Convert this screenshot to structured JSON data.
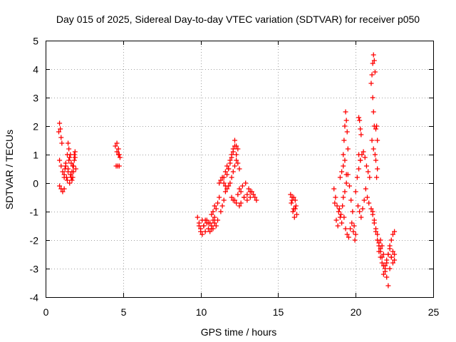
{
  "chart_data": {
    "type": "scatter",
    "title": "Day 015 of 2025, Sidereal Day-to-day VTEC variation (SDTVAR) for receiver p050",
    "xlabel": "GPS time / hours",
    "ylabel": "SDTVAR / TECUs",
    "xlim": [
      0,
      25
    ],
    "ylim": [
      -4,
      5
    ],
    "xticks": [
      0,
      5,
      10,
      15,
      20,
      25
    ],
    "yticks": [
      -4,
      -3,
      -2,
      -1,
      0,
      1,
      2,
      3,
      4,
      5
    ],
    "grid": true,
    "marker": "+",
    "color": "#ff0000",
    "series": [
      {
        "name": "SDTVAR",
        "x": [
          0.85,
          0.9,
          0.95,
          1.0,
          1.05,
          0.9,
          1.0,
          1.1,
          1.2,
          1.3,
          1.4,
          1.45,
          1.5,
          1.5,
          1.45,
          1.2,
          1.25,
          1.3,
          1.35,
          1.4,
          1.45,
          1.55,
          1.6,
          1.65,
          1.7,
          1.75,
          1.8,
          1.85,
          1.9,
          1.95,
          1.6,
          1.7,
          1.8,
          1.9,
          1.55,
          1.65,
          1.75,
          1.85,
          0.9,
          1.0,
          1.1,
          1.2,
          4.5,
          4.6,
          4.7,
          4.75,
          4.8,
          4.55,
          4.65,
          4.75,
          4.6,
          4.7,
          9.8,
          9.9,
          10.0,
          10.1,
          10.2,
          10.3,
          10.4,
          10.5,
          10.6,
          10.7,
          10.8,
          10.9,
          11.0,
          11.1,
          9.9,
          10.1,
          10.3,
          10.5,
          10.7,
          10.9,
          10.0,
          10.2,
          10.4,
          10.6,
          10.8,
          10.7,
          10.8,
          10.9,
          11.0,
          11.1,
          11.2,
          11.2,
          11.3,
          11.4,
          11.5,
          11.6,
          11.7,
          11.8,
          11.9,
          12.0,
          12.1,
          12.2,
          12.3,
          11.5,
          11.6,
          11.7,
          11.8,
          11.9,
          12.0,
          12.1,
          12.2,
          12.3,
          12.4,
          11.3,
          11.4,
          11.5,
          11.6,
          11.7,
          11.8,
          11.9,
          12.0,
          12.1,
          12.2,
          12.3,
          12.4,
          12.5,
          12.0,
          12.2,
          12.4,
          12.6,
          12.8,
          13.0,
          13.2,
          13.4,
          13.5,
          13.6,
          12.5,
          12.7,
          12.9,
          13.1,
          13.3,
          12.6,
          12.8,
          13.0,
          13.2,
          12.1,
          12.3,
          12.5,
          15.8,
          15.9,
          16.0,
          16.1,
          16.2,
          15.85,
          15.95,
          16.05,
          16.15,
          15.9,
          16.0,
          16.1,
          18.6,
          18.7,
          18.8,
          18.9,
          19.0,
          19.1,
          19.2,
          19.3,
          19.4,
          19.5,
          19.6,
          19.7,
          19.8,
          19.9,
          20.0,
          18.65,
          18.75,
          18.85,
          18.95,
          19.05,
          19.15,
          19.25,
          19.35,
          19.45,
          19.55,
          19.65,
          19.75,
          19.85,
          19.95,
          19.2,
          19.25,
          19.3,
          19.35,
          19.4,
          19.45,
          19.5,
          19.3,
          19.4,
          19.2,
          19.1,
          19.0,
          20.0,
          20.1,
          20.2,
          20.3,
          20.4,
          20.5,
          20.6,
          20.7,
          20.8,
          20.9,
          20.15,
          20.25,
          20.35,
          20.45,
          20.55,
          20.65,
          20.75,
          20.85,
          20.2,
          20.25,
          20.3,
          20.35,
          20.2,
          20.3,
          21.0,
          21.05,
          21.1,
          21.15,
          21.2,
          21.25,
          21.1,
          21.15,
          21.2,
          21.05,
          21.15,
          21.25,
          21.3,
          21.35,
          21.4,
          21.3,
          21.4,
          21.35,
          21.0,
          21.1,
          21.2,
          21.3,
          21.4,
          21.5,
          21.6,
          21.7,
          21.8,
          21.9,
          22.0,
          22.1,
          22.2,
          22.3,
          22.4,
          22.5,
          21.5,
          21.6,
          21.7,
          21.8,
          21.9,
          22.0,
          22.1,
          22.2,
          22.3,
          22.4,
          22.5,
          21.6,
          21.7,
          21.8,
          21.9,
          22.0,
          22.1,
          22.2,
          22.3,
          22.4,
          22.5,
          21.1,
          21.2,
          21.3,
          21.4,
          21.5,
          21.6
        ],
        "y": [
          1.8,
          2.1,
          1.9,
          1.6,
          1.4,
          0.8,
          0.6,
          0.4,
          0.2,
          0.6,
          1.0,
          1.4,
          1.2,
          0.8,
          0.4,
          0.3,
          0.5,
          0.7,
          0.2,
          0.1,
          0.5,
          0.9,
          1.0,
          0.7,
          0.4,
          0.2,
          0.6,
          0.8,
          1.1,
          0.5,
          0.3,
          0.1,
          0.4,
          0.9,
          0.0,
          0.2,
          0.6,
          1.0,
          -0.1,
          -0.2,
          -0.3,
          -0.2,
          1.3,
          1.4,
          1.2,
          1.0,
          0.9,
          0.6,
          0.6,
          0.6,
          1.1,
          1.0,
          -1.2,
          -1.4,
          -1.6,
          -1.8,
          -1.5,
          -1.3,
          -1.4,
          -1.6,
          -1.7,
          -1.5,
          -1.3,
          -1.4,
          -1.5,
          -1.3,
          -1.5,
          -1.3,
          -1.7,
          -1.4,
          -1.6,
          -1.2,
          -1.7,
          -1.5,
          -1.3,
          -1.4,
          -1.6,
          -1.1,
          -1.0,
          -0.8,
          -0.9,
          -0.7,
          -0.5,
          0.0,
          0.1,
          0.2,
          0.0,
          -0.1,
          0.3,
          0.5,
          0.7,
          0.9,
          1.1,
          1.3,
          1.0,
          0.2,
          0.4,
          0.6,
          0.5,
          0.8,
          1.0,
          1.2,
          1.5,
          1.3,
          1.2,
          -1.0,
          -0.8,
          -0.6,
          -0.3,
          -0.2,
          -0.1,
          0.0,
          0.2,
          0.4,
          0.6,
          0.8,
          0.7,
          0.5,
          -0.5,
          -0.6,
          -0.4,
          -0.3,
          -0.5,
          -0.6,
          -0.3,
          -0.4,
          -0.5,
          -0.6,
          -0.2,
          -0.1,
          0.0,
          -0.2,
          -0.3,
          -0.7,
          -0.5,
          -0.4,
          -0.5,
          -0.6,
          -0.7,
          -0.8,
          -0.4,
          -0.6,
          -0.5,
          -0.9,
          -1.1,
          -0.7,
          -1.0,
          -1.2,
          -0.8,
          -0.5,
          -0.9,
          -0.6,
          -0.2,
          -0.5,
          -0.8,
          -1.0,
          -1.2,
          -1.4,
          -0.5,
          -0.3,
          0.0,
          0.3,
          -0.1,
          -0.6,
          -1.0,
          -1.5,
          -1.8,
          -0.7,
          -1.3,
          -1.5,
          -0.9,
          -1.1,
          -0.8,
          -1.2,
          -1.6,
          -1.8,
          -1.9,
          -1.6,
          -1.4,
          -1.7,
          -2.0,
          1.0,
          1.5,
          2.0,
          2.5,
          2.2,
          1.8,
          1.2,
          0.8,
          0.3,
          0.6,
          0.4,
          0.2,
          -0.3,
          0.2,
          0.5,
          0.8,
          1.0,
          1.1,
          0.9,
          0.6,
          0.4,
          0.2,
          -0.8,
          -1.0,
          -1.2,
          -0.9,
          -0.6,
          -0.2,
          -0.5,
          -0.7,
          2.3,
          2.2,
          1.9,
          1.7,
          1.0,
          0.8,
          3.5,
          3.8,
          4.2,
          4.5,
          4.3,
          3.9,
          3.0,
          2.5,
          2.0,
          1.5,
          1.2,
          1.0,
          1.9,
          2.0,
          1.5,
          0.8,
          0.5,
          0.2,
          -0.9,
          -1.1,
          -1.4,
          -1.7,
          -2.0,
          -2.2,
          -2.4,
          -2.6,
          -2.9,
          -3.1,
          -2.8,
          -2.5,
          -2.2,
          -2.0,
          -1.8,
          -1.7,
          -2.4,
          -2.6,
          -2.8,
          -3.2,
          -3.0,
          -2.7,
          -2.5,
          -2.3,
          -2.6,
          -2.8,
          -2.5,
          -2.0,
          -2.2,
          -2.5,
          -2.9,
          -3.3,
          -3.6,
          -3.0,
          -2.6,
          -2.4,
          -2.7,
          -1.0,
          -1.3,
          -1.6,
          -1.8,
          -2.1,
          -2.3
        ]
      }
    ]
  }
}
